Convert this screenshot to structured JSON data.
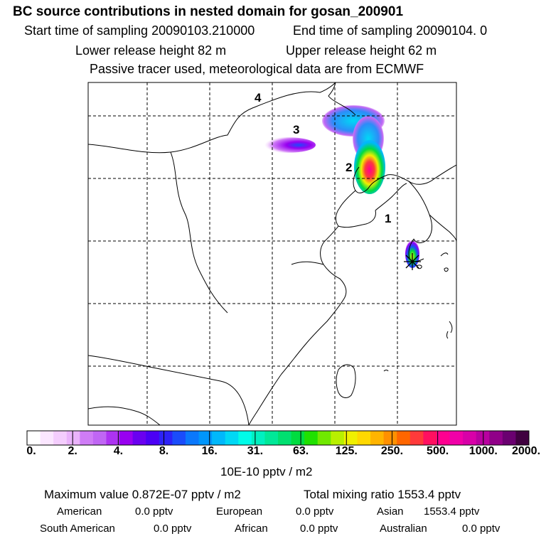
{
  "header": {
    "title": "BC  source contributions in nested domain for gosan_200901",
    "start_label": "Start time of sampling 20090103.210000",
    "end_label": "End time of sampling 20090104.     0",
    "lower_release": "Lower release height   82 m",
    "upper_release": "Upper release height   62 m",
    "tracer_note": "Passive tracer used, meteorological data are from ECMWF"
  },
  "map": {
    "region_labels": [
      "1",
      "2",
      "3",
      "4"
    ],
    "receptor_marker": "asterisk-marker"
  },
  "colorbar": {
    "ticks": [
      "0.",
      "2.",
      "4.",
      "8.",
      "16.",
      "31.",
      "63.",
      "125.",
      "250.",
      "500.",
      "1000.",
      "2000."
    ],
    "colors": [
      "#ffffff",
      "#fbe6ff",
      "#f4cdfd",
      "#eab3fb",
      "#cf7cf6",
      "#c066f4",
      "#ad33f2",
      "#9800f0",
      "#6a00f0",
      "#4b00f4",
      "#2d22f8",
      "#1a4cfb",
      "#0a78fc",
      "#0096fc",
      "#00b8fb",
      "#00d8f5",
      "#00fce8",
      "#00f0c0",
      "#00e898",
      "#00e070",
      "#00dc40",
      "#20e000",
      "#70e800",
      "#b8f000",
      "#f0f000",
      "#ffd800",
      "#ffb400",
      "#ff9000",
      "#ff6600",
      "#ff3a3a",
      "#ff1060",
      "#ff0090",
      "#f000a8",
      "#d800a8",
      "#b800a0",
      "#900088",
      "#6a0070",
      "#400040"
    ],
    "unit": "10E-10 pptv / m2"
  },
  "stats": {
    "max_value": "Maximum value  0.872E-07 pptv / m2",
    "total_mixing": "Total mixing ratio     1553.4 pptv",
    "american": "American",
    "american_val": "0.0 pptv",
    "european": "European",
    "european_val": "0.0 pptv",
    "asian": "Asian",
    "asian_val": "1553.4 pptv",
    "south_american": "South American",
    "south_american_val": "0.0 pptv",
    "african": "African",
    "african_val": "0.0 pptv",
    "australian": "Australian",
    "australian_val": "0.0 pptv"
  }
}
